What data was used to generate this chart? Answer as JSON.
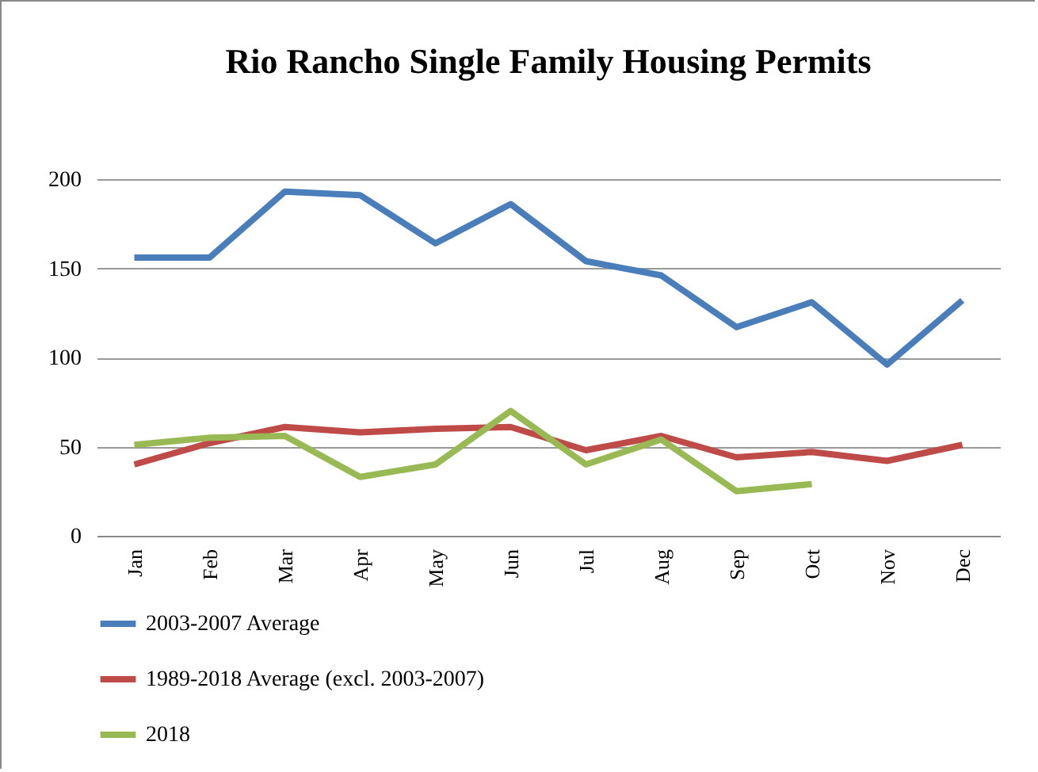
{
  "chart_data": {
    "type": "line",
    "title": "Rio Rancho Single Family Housing Permits",
    "categories": [
      "Jan",
      "Feb",
      "Mar",
      "Apr",
      "May",
      "Jun",
      "Jul",
      "Aug",
      "Sep",
      "Oct",
      "Nov",
      "Dec"
    ],
    "series": [
      {
        "name": "2003-2007 Average",
        "color": "#4a7ebb",
        "values": [
          156,
          156,
          193,
          191,
          164,
          186,
          154,
          146,
          117,
          131,
          96,
          132
        ]
      },
      {
        "name": "1989-2018 Average (excl. 2003-2007)",
        "color": "#be4b48",
        "values": [
          40,
          52,
          61,
          58,
          60,
          61,
          48,
          56,
          44,
          47,
          42,
          51
        ]
      },
      {
        "name": "2018",
        "color": "#98b954",
        "values": [
          51,
          55,
          56,
          33,
          40,
          70,
          40,
          54,
          25,
          29,
          null,
          null
        ]
      }
    ],
    "ylim": [
      0,
      200
    ],
    "yticks": [
      0,
      50,
      100,
      150,
      200
    ],
    "grid": "y",
    "legend": "bottom",
    "marker": "none",
    "line_style": "solid"
  }
}
